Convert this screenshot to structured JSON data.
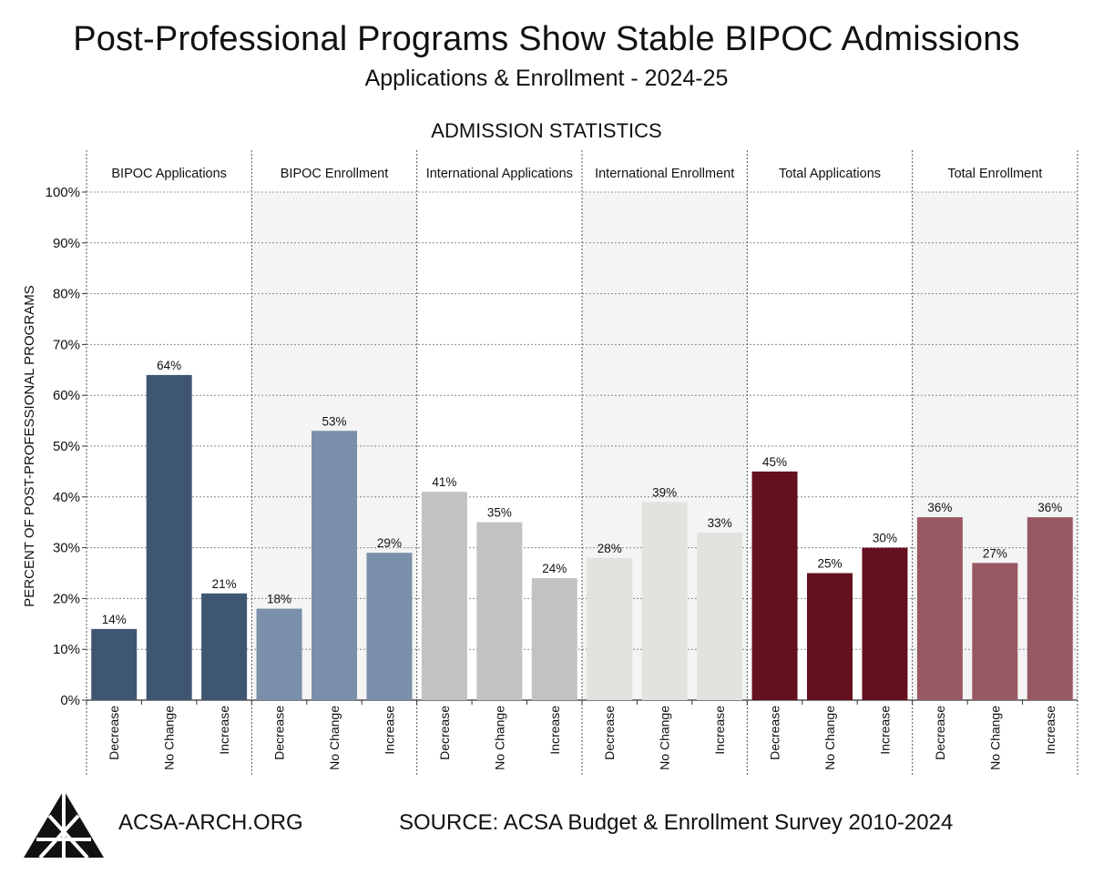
{
  "header": {
    "title": "Post-Professional Programs Show Stable BIPOC Admissions",
    "subtitle": "Applications & Enrollment - 2024-25"
  },
  "footer": {
    "site": "ACSA-ARCH.ORG",
    "source": "SOURCE: ACSA Budget & Enrollment Survey 2010-2024",
    "logo_icon": "acsa-triangle-logo-icon"
  },
  "chart_data": {
    "type": "bar",
    "title": "ADMISSION STATISTICS",
    "ylabel": "PERCENT OF POST-PROFESSIONAL PROGRAMS",
    "ylim": [
      0,
      100
    ],
    "yticks": [
      "0%",
      "10%",
      "20%",
      "30%",
      "40%",
      "50%",
      "60%",
      "70%",
      "80%",
      "90%",
      "100%"
    ],
    "grid": true,
    "categories": [
      "Decrease",
      "No Change",
      "Increase"
    ],
    "panels": [
      {
        "name": "BIPOC Applications",
        "color": "#3f5670",
        "values": [
          14,
          64,
          21
        ],
        "labels": [
          "14%",
          "64%",
          "21%"
        ]
      },
      {
        "name": "BIPOC Enrollment",
        "color": "#7a8fa9",
        "values": [
          18,
          53,
          29
        ],
        "labels": [
          "18%",
          "53%",
          "29%"
        ]
      },
      {
        "name": "International Applications",
        "color": "#c2c2c2",
        "values": [
          41,
          35,
          24
        ],
        "labels": [
          "41%",
          "35%",
          "24%"
        ]
      },
      {
        "name": "International Enrollment",
        "color": "#e2e2df",
        "values": [
          28,
          39,
          33
        ],
        "labels": [
          "28%",
          "39%",
          "33%"
        ]
      },
      {
        "name": "Total Applications",
        "color": "#64101f",
        "values": [
          45,
          25,
          30
        ],
        "labels": [
          "45%",
          "25%",
          "30%"
        ]
      },
      {
        "name": "Total Enrollment",
        "color": "#985863",
        "values": [
          36,
          27,
          36
        ],
        "labels": [
          "36%",
          "27%",
          "36%"
        ]
      }
    ],
    "panel_backgrounds": [
      "#ffffff",
      "#f4f4f4"
    ]
  }
}
